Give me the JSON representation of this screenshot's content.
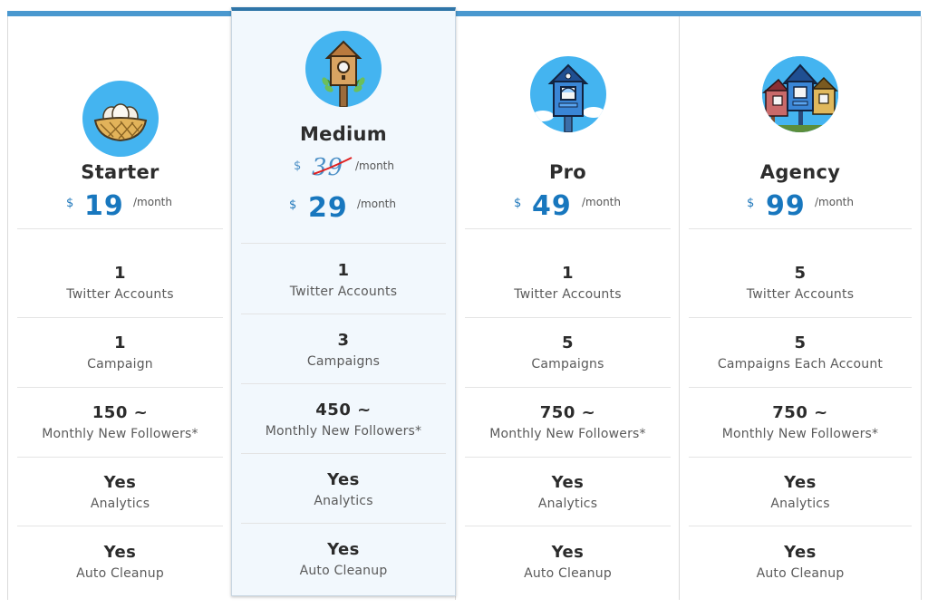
{
  "plans": [
    {
      "name": "Starter",
      "icon": "bird-nest-icon",
      "price": {
        "currency": "$",
        "amount": "19",
        "period": "/month"
      },
      "features": [
        {
          "value": "1",
          "label": "Twitter Accounts"
        },
        {
          "value": "1",
          "label": "Campaign"
        },
        {
          "value": "150 ~",
          "label": "Monthly New Followers*"
        },
        {
          "value": "Yes",
          "label": "Analytics"
        },
        {
          "value": "Yes",
          "label": "Auto Cleanup"
        }
      ]
    },
    {
      "name": "Medium",
      "icon": "birdhouse-icon",
      "featured": true,
      "old_price": {
        "currency": "$",
        "amount": "39",
        "period": "/month"
      },
      "price": {
        "currency": "$",
        "amount": "29",
        "period": "/month"
      },
      "features": [
        {
          "value": "1",
          "label": "Twitter Accounts"
        },
        {
          "value": "3",
          "label": "Campaigns"
        },
        {
          "value": "450 ~",
          "label": "Monthly New Followers*"
        },
        {
          "value": "Yes",
          "label": "Analytics"
        },
        {
          "value": "Yes",
          "label": "Auto Cleanup"
        }
      ]
    },
    {
      "name": "Pro",
      "icon": "blue-birdhouse-icon",
      "price": {
        "currency": "$",
        "amount": "49",
        "period": "/month"
      },
      "features": [
        {
          "value": "1",
          "label": "Twitter Accounts"
        },
        {
          "value": "5",
          "label": "Campaigns"
        },
        {
          "value": "750 ~",
          "label": "Monthly New Followers*"
        },
        {
          "value": "Yes",
          "label": "Analytics"
        },
        {
          "value": "Yes",
          "label": "Auto Cleanup"
        }
      ]
    },
    {
      "name": "Agency",
      "icon": "birdhouse-group-icon",
      "price": {
        "currency": "$",
        "amount": "99",
        "period": "/month"
      },
      "features": [
        {
          "value": "5",
          "label": "Twitter Accounts"
        },
        {
          "value": "5",
          "label": "Campaigns Each Account"
        },
        {
          "value": "750 ~",
          "label": "Monthly New Followers*"
        },
        {
          "value": "Yes",
          "label": "Analytics"
        },
        {
          "value": "Yes",
          "label": "Auto Cleanup"
        }
      ]
    }
  ],
  "colors": {
    "accent": "#1877be",
    "top_bar": "#4a98cf",
    "featured_border": "#2f75a8",
    "icon_circle": "#44b4f0",
    "strike": "#e02020"
  }
}
